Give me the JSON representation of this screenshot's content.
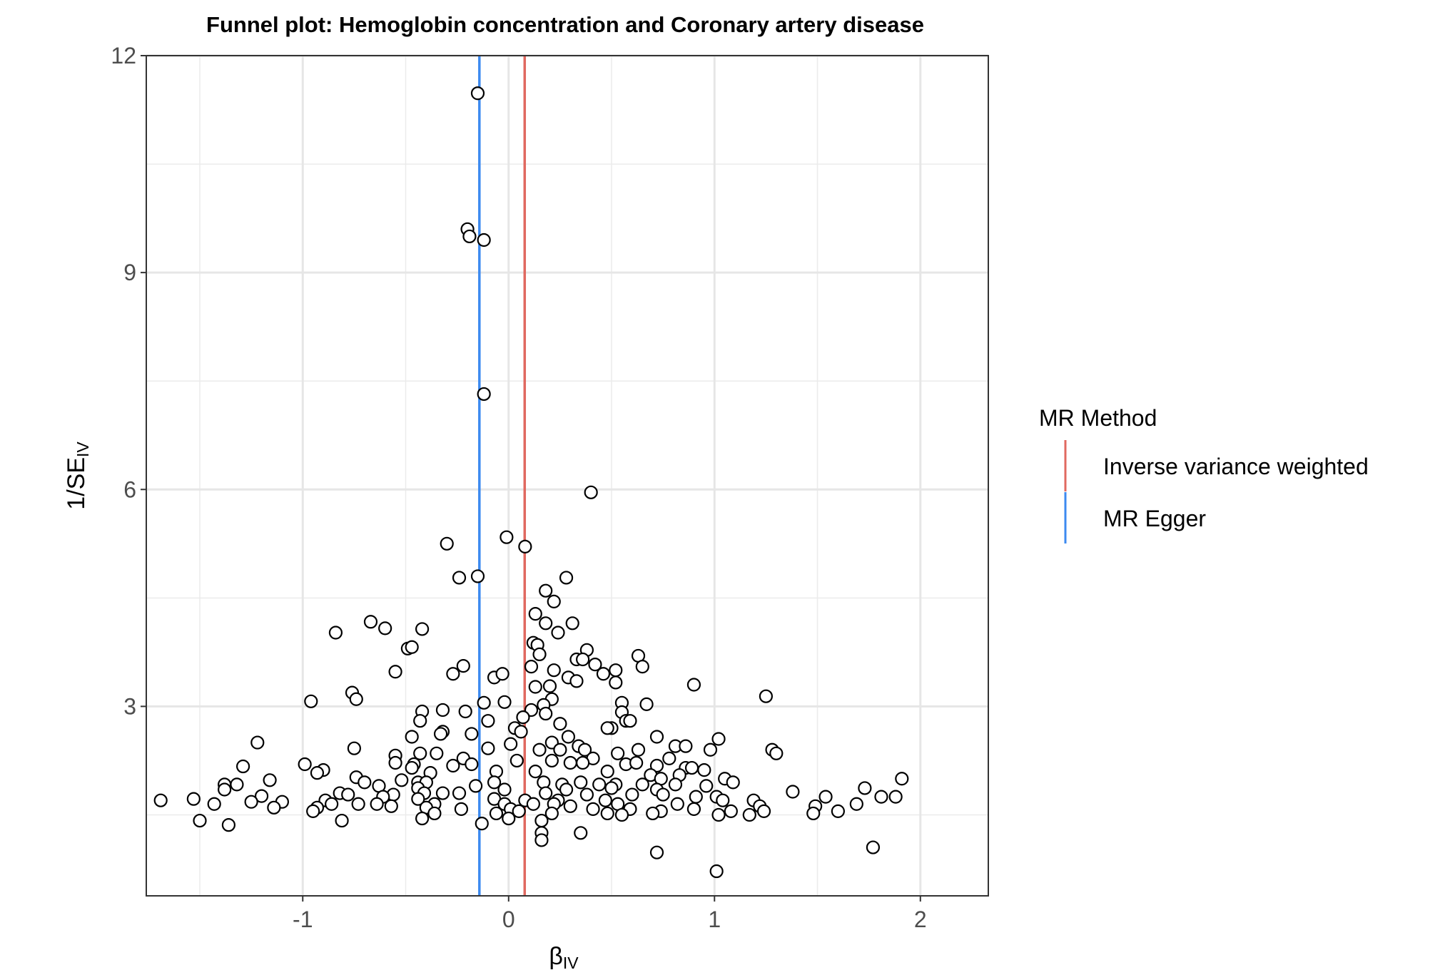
{
  "chart_data": {
    "type": "scatter",
    "title": "Funnel plot: Hemoglobin concentration and Coronary artery disease",
    "xlabel": "β",
    "xlabel_sub": "IV",
    "ylabel": "1/SE",
    "ylabel_sub": "IV",
    "xlim": [
      -1.76,
      2.33
    ],
    "ylim": [
      0.38,
      12.0
    ],
    "x_ticks": [
      -1,
      0,
      1,
      2
    ],
    "x_tick_labels": [
      "-1",
      "0",
      "1",
      "2"
    ],
    "y_ticks": [
      3,
      6,
      9,
      12
    ],
    "y_tick_labels": [
      "3",
      "6",
      "9",
      "12"
    ],
    "grid": true,
    "legend": {
      "title": "MR Method",
      "position": "right",
      "entries": [
        {
          "label": "Inverse variance weighted",
          "color": "#E06960"
        },
        {
          "label": "MR Egger",
          "color": "#3C8AF0"
        }
      ]
    },
    "vlines": [
      {
        "method": "Inverse variance weighted",
        "x": 0.078,
        "color": "#E06960"
      },
      {
        "method": "MR Egger",
        "x": -0.142,
        "color": "#3C8AF0"
      }
    ],
    "points": [
      [
        -0.15,
        11.48
      ],
      [
        -0.2,
        9.6
      ],
      [
        -0.19,
        9.5
      ],
      [
        -0.12,
        9.45
      ],
      [
        -0.12,
        7.32
      ],
      [
        0.4,
        5.96
      ],
      [
        -0.01,
        5.34
      ],
      [
        0.08,
        5.21
      ],
      [
        -0.3,
        5.25
      ],
      [
        -0.24,
        4.78
      ],
      [
        -0.15,
        4.8
      ],
      [
        0.28,
        4.78
      ],
      [
        0.18,
        4.6
      ],
      [
        0.22,
        4.45
      ],
      [
        0.13,
        4.28
      ],
      [
        0.31,
        4.15
      ],
      [
        0.18,
        4.15
      ],
      [
        -0.67,
        4.17
      ],
      [
        -0.6,
        4.08
      ],
      [
        -0.42,
        4.07
      ],
      [
        -0.84,
        4.02
      ],
      [
        0.24,
        4.02
      ],
      [
        0.12,
        3.88
      ],
      [
        0.14,
        3.85
      ],
      [
        0.38,
        3.78
      ],
      [
        -0.49,
        3.8
      ],
      [
        -0.47,
        3.82
      ],
      [
        0.15,
        3.72
      ],
      [
        0.33,
        3.65
      ],
      [
        0.36,
        3.65
      ],
      [
        0.42,
        3.58
      ],
      [
        0.63,
        3.7
      ],
      [
        0.65,
        3.55
      ],
      [
        -0.22,
        3.56
      ],
      [
        0.11,
        3.55
      ],
      [
        0.22,
        3.5
      ],
      [
        0.52,
        3.5
      ],
      [
        0.46,
        3.45
      ],
      [
        -0.27,
        3.45
      ],
      [
        -0.55,
        3.48
      ],
      [
        -0.07,
        3.4
      ],
      [
        -0.03,
        3.45
      ],
      [
        0.29,
        3.4
      ],
      [
        0.33,
        3.35
      ],
      [
        0.52,
        3.33
      ],
      [
        0.13,
        3.27
      ],
      [
        0.2,
        3.28
      ],
      [
        0.9,
        3.3
      ],
      [
        -0.76,
        3.19
      ],
      [
        -0.74,
        3.1
      ],
      [
        1.25,
        3.14
      ],
      [
        -0.96,
        3.07
      ],
      [
        -0.12,
        3.05
      ],
      [
        -0.02,
        3.06
      ],
      [
        0.21,
        3.1
      ],
      [
        0.55,
        3.05
      ],
      [
        0.67,
        3.03
      ],
      [
        0.17,
        3.02
      ],
      [
        -0.32,
        2.95
      ],
      [
        -0.21,
        2.93
      ],
      [
        -0.42,
        2.93
      ],
      [
        0.11,
        2.95
      ],
      [
        0.18,
        2.9
      ],
      [
        0.55,
        2.92
      ],
      [
        0.57,
        2.8
      ],
      [
        0.59,
        2.8
      ],
      [
        0.07,
        2.85
      ],
      [
        -0.1,
        2.8
      ],
      [
        0.25,
        2.76
      ],
      [
        0.5,
        2.7
      ],
      [
        -0.43,
        2.8
      ],
      [
        0.03,
        2.7
      ],
      [
        0.06,
        2.65
      ],
      [
        -0.32,
        2.65
      ],
      [
        0.48,
        2.7
      ],
      [
        -0.18,
        2.62
      ],
      [
        -0.33,
        2.62
      ],
      [
        -0.47,
        2.58
      ],
      [
        -1.22,
        2.5
      ],
      [
        0.72,
        2.58
      ],
      [
        1.02,
        2.55
      ],
      [
        0.29,
        2.58
      ],
      [
        0.21,
        2.5
      ],
      [
        0.01,
        2.48
      ],
      [
        0.34,
        2.45
      ],
      [
        0.37,
        2.4
      ],
      [
        0.81,
        2.45
      ],
      [
        0.86,
        2.45
      ],
      [
        0.98,
        2.4
      ],
      [
        1.28,
        2.4
      ],
      [
        -0.75,
        2.42
      ],
      [
        -0.1,
        2.42
      ],
      [
        0.15,
        2.4
      ],
      [
        0.25,
        2.4
      ],
      [
        0.63,
        2.4
      ],
      [
        1.3,
        2.35
      ],
      [
        -0.35,
        2.35
      ],
      [
        -0.43,
        2.35
      ],
      [
        -0.55,
        2.32
      ],
      [
        0.53,
        2.35
      ],
      [
        -0.22,
        2.28
      ],
      [
        0.41,
        2.28
      ],
      [
        0.78,
        2.28
      ],
      [
        0.04,
        2.25
      ],
      [
        -0.55,
        2.22
      ],
      [
        -0.46,
        2.2
      ],
      [
        -0.27,
        2.18
      ],
      [
        -0.18,
        2.2
      ],
      [
        0.21,
        2.25
      ],
      [
        0.3,
        2.22
      ],
      [
        0.36,
        2.22
      ],
      [
        0.57,
        2.2
      ],
      [
        0.62,
        2.22
      ],
      [
        0.72,
        2.18
      ],
      [
        0.86,
        2.15
      ],
      [
        0.89,
        2.15
      ],
      [
        0.95,
        2.12
      ],
      [
        -0.99,
        2.2
      ],
      [
        -0.9,
        2.12
      ],
      [
        -0.93,
        2.08
      ],
      [
        -1.29,
        2.17
      ],
      [
        -0.47,
        2.15
      ],
      [
        -0.38,
        2.08
      ],
      [
        -0.06,
        2.1
      ],
      [
        0.13,
        2.1
      ],
      [
        0.48,
        2.1
      ],
      [
        0.69,
        2.05
      ],
      [
        0.74,
        2.0
      ],
      [
        0.83,
        2.05
      ],
      [
        1.05,
        2.0
      ],
      [
        1.91,
        2.0
      ],
      [
        -1.16,
        1.98
      ],
      [
        -0.74,
        2.02
      ],
      [
        -0.7,
        1.95
      ],
      [
        -0.52,
        1.98
      ],
      [
        -0.44,
        1.95
      ],
      [
        -0.4,
        1.95
      ],
      [
        -0.07,
        1.95
      ],
      [
        0.17,
        1.95
      ],
      [
        0.26,
        1.92
      ],
      [
        0.35,
        1.95
      ],
      [
        0.44,
        1.92
      ],
      [
        0.52,
        1.92
      ],
      [
        0.65,
        1.92
      ],
      [
        0.81,
        1.92
      ],
      [
        0.96,
        1.9
      ],
      [
        1.09,
        1.95
      ],
      [
        -1.38,
        1.92
      ],
      [
        -1.32,
        1.92
      ],
      [
        -0.63,
        1.9
      ],
      [
        -0.44,
        1.87
      ],
      [
        -0.16,
        1.9
      ],
      [
        -0.02,
        1.85
      ],
      [
        0.28,
        1.85
      ],
      [
        0.5,
        1.87
      ],
      [
        0.72,
        1.85
      ],
      [
        1.38,
        1.82
      ],
      [
        1.73,
        1.87
      ],
      [
        -1.38,
        1.85
      ],
      [
        -0.82,
        1.8
      ],
      [
        -0.78,
        1.78
      ],
      [
        -0.56,
        1.78
      ],
      [
        -0.41,
        1.8
      ],
      [
        -0.32,
        1.8
      ],
      [
        -0.24,
        1.8
      ],
      [
        0.18,
        1.8
      ],
      [
        0.38,
        1.78
      ],
      [
        0.6,
        1.78
      ],
      [
        0.75,
        1.78
      ],
      [
        0.91,
        1.75
      ],
      [
        1.01,
        1.75
      ],
      [
        1.81,
        1.75
      ],
      [
        1.88,
        1.75
      ],
      [
        1.54,
        1.75
      ],
      [
        -1.2,
        1.76
      ],
      [
        -0.89,
        1.7
      ],
      [
        -0.61,
        1.75
      ],
      [
        -0.44,
        1.72
      ],
      [
        -0.07,
        1.72
      ],
      [
        0.08,
        1.7
      ],
      [
        0.24,
        1.7
      ],
      [
        0.47,
        1.7
      ],
      [
        1.04,
        1.7
      ],
      [
        1.19,
        1.7
      ],
      [
        -1.69,
        1.7
      ],
      [
        -1.53,
        1.72
      ],
      [
        -1.25,
        1.68
      ],
      [
        -1.1,
        1.68
      ],
      [
        -0.86,
        1.65
      ],
      [
        -0.73,
        1.65
      ],
      [
        -0.64,
        1.65
      ],
      [
        -0.57,
        1.62
      ],
      [
        -0.36,
        1.65
      ],
      [
        -0.02,
        1.65
      ],
      [
        0.12,
        1.65
      ],
      [
        0.22,
        1.65
      ],
      [
        0.3,
        1.62
      ],
      [
        0.53,
        1.65
      ],
      [
        0.82,
        1.65
      ],
      [
        1.22,
        1.62
      ],
      [
        1.49,
        1.62
      ],
      [
        1.69,
        1.65
      ],
      [
        -1.43,
        1.65
      ],
      [
        -1.14,
        1.6
      ],
      [
        -0.93,
        1.6
      ],
      [
        -0.4,
        1.6
      ],
      [
        -0.23,
        1.58
      ],
      [
        0.01,
        1.58
      ],
      [
        0.41,
        1.58
      ],
      [
        0.59,
        1.58
      ],
      [
        0.74,
        1.55
      ],
      [
        0.9,
        1.58
      ],
      [
        1.08,
        1.55
      ],
      [
        1.24,
        1.55
      ],
      [
        1.6,
        1.55
      ],
      [
        -0.95,
        1.55
      ],
      [
        -0.36,
        1.52
      ],
      [
        -0.06,
        1.52
      ],
      [
        0.05,
        1.55
      ],
      [
        0.21,
        1.52
      ],
      [
        0.48,
        1.52
      ],
      [
        0.55,
        1.5
      ],
      [
        0.7,
        1.52
      ],
      [
        1.02,
        1.5
      ],
      [
        1.17,
        1.5
      ],
      [
        1.48,
        1.52
      ],
      [
        -1.5,
        1.42
      ],
      [
        -0.42,
        1.45
      ],
      [
        0.0,
        1.45
      ],
      [
        0.16,
        1.42
      ],
      [
        -0.81,
        1.42
      ],
      [
        -1.36,
        1.36
      ],
      [
        -0.13,
        1.38
      ],
      [
        0.16,
        1.25
      ],
      [
        0.35,
        1.25
      ],
      [
        0.16,
        1.15
      ],
      [
        0.72,
        0.98
      ],
      [
        1.77,
        1.05
      ],
      [
        1.01,
        0.72
      ]
    ]
  }
}
